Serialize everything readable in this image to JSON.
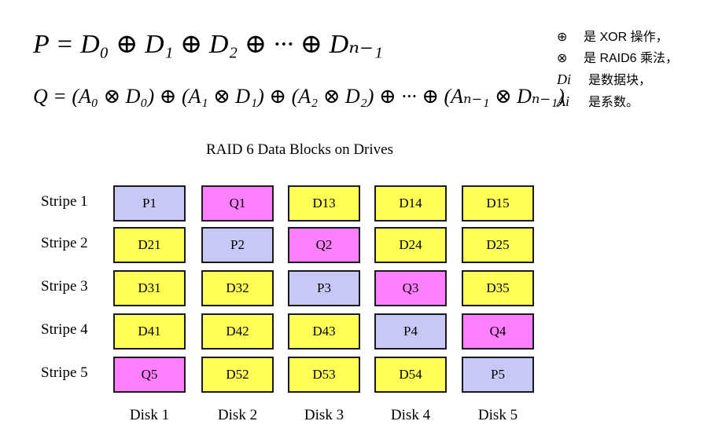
{
  "formulas": {
    "p": "P = D₀ ⊕ D₁ ⊕ D₂ ⊕ ··· ⊕ Dₙ₋₁",
    "q": "Q = (A₀ ⊗ D₀) ⊕ (A₁ ⊗ D₁) ⊕ (A₂ ⊗ D₂) ⊕ ··· ⊕ (Aₙ₋₁ ⊗ Dₙ₋₁)"
  },
  "legend": [
    {
      "symbol": "⊕",
      "text": "是 XOR 操作，"
    },
    {
      "symbol": "⊗",
      "text": "是 RAID6 乘法，"
    },
    {
      "symbol": "Di",
      "text": "是数据块，"
    },
    {
      "symbol": "Ai",
      "text": "是系数。"
    }
  ],
  "diagram": {
    "title": "RAID 6 Data Blocks on Drives",
    "stripes": [
      "Stripe 1",
      "Stripe 2",
      "Stripe 3",
      "Stripe 4",
      "Stripe 5"
    ],
    "disks": [
      "Disk 1",
      "Disk 2",
      "Disk 3",
      "Disk 4",
      "Disk 5"
    ],
    "rows": [
      [
        {
          "label": "P1",
          "type": "p"
        },
        {
          "label": "Q1",
          "type": "q"
        },
        {
          "label": "D13",
          "type": "d"
        },
        {
          "label": "D14",
          "type": "d"
        },
        {
          "label": "D15",
          "type": "d"
        }
      ],
      [
        {
          "label": "D21",
          "type": "d"
        },
        {
          "label": "P2",
          "type": "p"
        },
        {
          "label": "Q2",
          "type": "q"
        },
        {
          "label": "D24",
          "type": "d"
        },
        {
          "label": "D25",
          "type": "d"
        }
      ],
      [
        {
          "label": "D31",
          "type": "d"
        },
        {
          "label": "D32",
          "type": "d"
        },
        {
          "label": "P3",
          "type": "p"
        },
        {
          "label": "Q3",
          "type": "q"
        },
        {
          "label": "D35",
          "type": "d"
        }
      ],
      [
        {
          "label": "D41",
          "type": "d"
        },
        {
          "label": "D42",
          "type": "d"
        },
        {
          "label": "D43",
          "type": "d"
        },
        {
          "label": "P4",
          "type": "p"
        },
        {
          "label": "Q4",
          "type": "q"
        }
      ],
      [
        {
          "label": "Q5",
          "type": "q"
        },
        {
          "label": "D52",
          "type": "d"
        },
        {
          "label": "D53",
          "type": "d"
        },
        {
          "label": "D54",
          "type": "d"
        },
        {
          "label": "P5",
          "type": "p"
        }
      ]
    ],
    "colors": {
      "p": "#c8c8f6",
      "q": "#ff80ff",
      "d": "#ffff55",
      "border": "#1a1a1a"
    }
  }
}
